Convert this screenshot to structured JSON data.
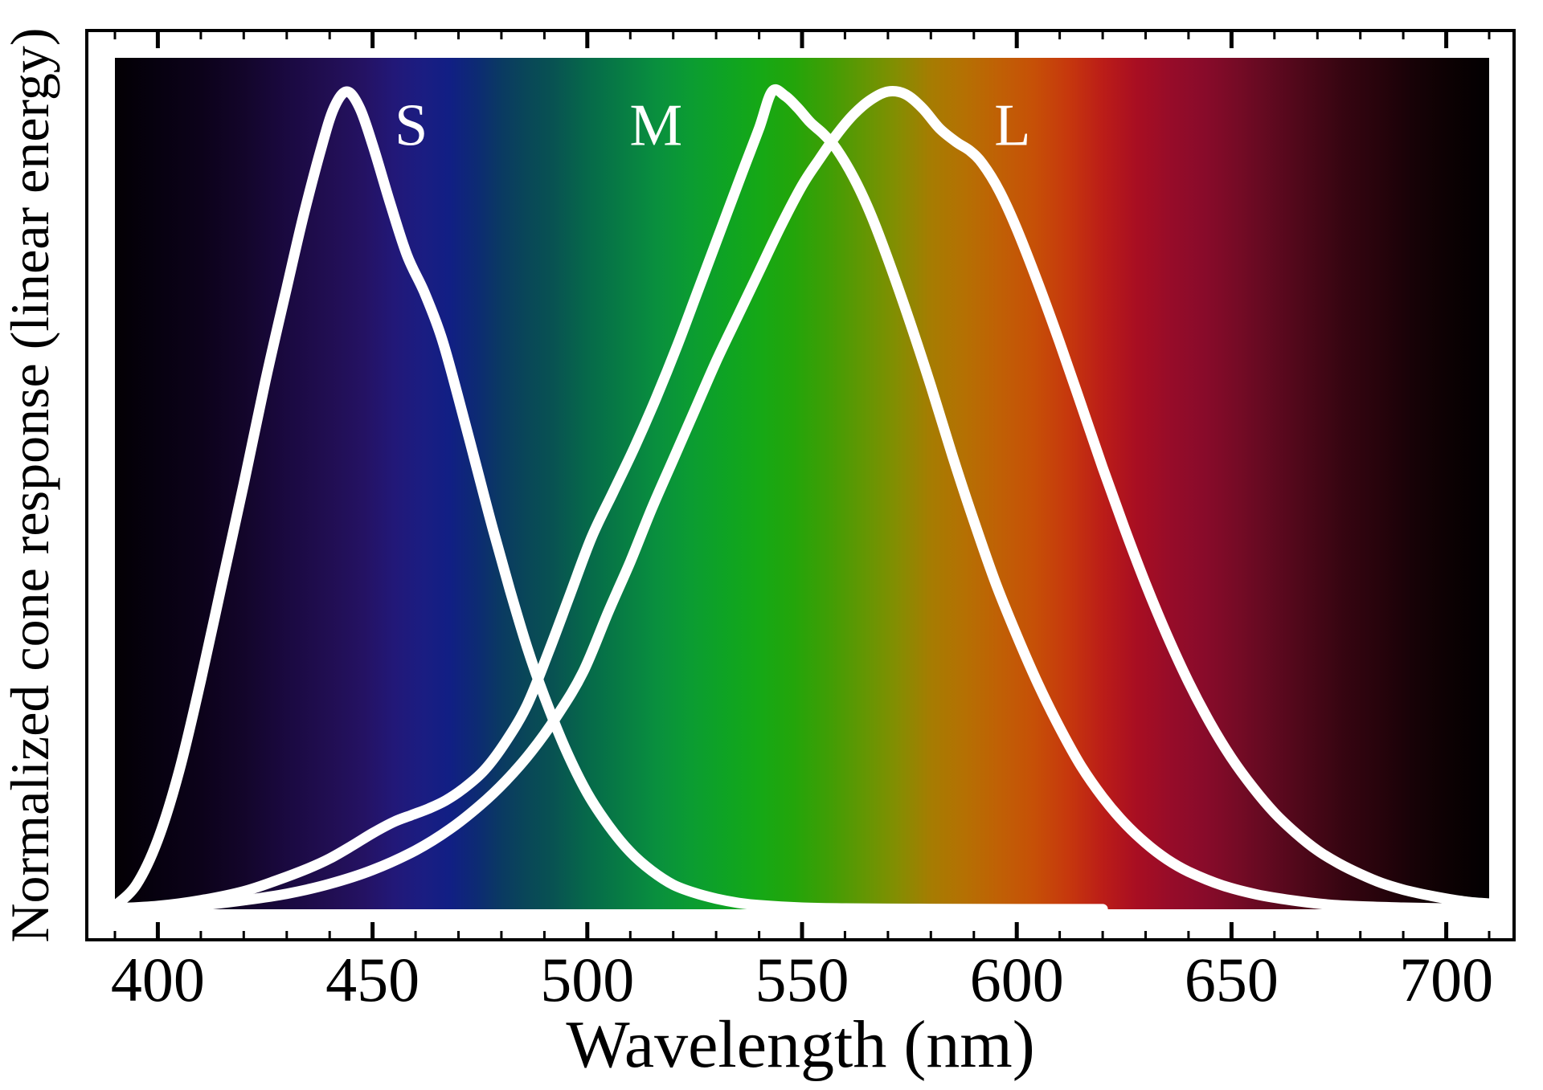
{
  "figure": {
    "background_color": "#ffffff",
    "frame_color": "#000000",
    "curve_color": "#ffffff",
    "text_color": "#000000",
    "curve_label_color": "#ffffff"
  },
  "chart_data": {
    "type": "line",
    "title": "",
    "xlabel": "Wavelength (nm)",
    "ylabel": "Normalized cone response (linear energy)",
    "grid": false,
    "legend_position": "inline-curve-labels",
    "x_axis": {
      "unit": "nm",
      "range": [
        390,
        710
      ],
      "major_ticks": [
        400,
        450,
        500,
        550,
        600,
        650,
        700
      ],
      "minor_tick_step": 10,
      "ticks_on": "top-and-bottom, pointing inward"
    },
    "y_axis": {
      "range": [
        0,
        1.04
      ],
      "ticks": "none"
    },
    "background_description": "visible light spectrum gradient, black at both ends",
    "spectrum_gradient_stops": [
      [
        390,
        "#030004"
      ],
      [
        400,
        "#070110"
      ],
      [
        410,
        "#0c021a"
      ],
      [
        420,
        "#13052a"
      ],
      [
        430,
        "#1a0940"
      ],
      [
        440,
        "#210e52"
      ],
      [
        448,
        "#241263"
      ],
      [
        455,
        "#221878"
      ],
      [
        462,
        "#1a1d82"
      ],
      [
        468,
        "#111f84"
      ],
      [
        474,
        "#0d2a74"
      ],
      [
        480,
        "#0a3a62"
      ],
      [
        486,
        "#094758"
      ],
      [
        492,
        "#085252"
      ],
      [
        500,
        "#06694a"
      ],
      [
        508,
        "#077c44"
      ],
      [
        516,
        "#098f3e"
      ],
      [
        524,
        "#0b9c32"
      ],
      [
        532,
        "#0ea324"
      ],
      [
        540,
        "#15a816"
      ],
      [
        548,
        "#23a50a"
      ],
      [
        556,
        "#3f9e05"
      ],
      [
        564,
        "#619703"
      ],
      [
        572,
        "#838e02"
      ],
      [
        580,
        "#a67c02"
      ],
      [
        588,
        "#b57003"
      ],
      [
        596,
        "#c06005"
      ],
      [
        604,
        "#c65007"
      ],
      [
        612,
        "#c6380d"
      ],
      [
        620,
        "#bb1d18"
      ],
      [
        628,
        "#a80e22"
      ],
      [
        636,
        "#960c29"
      ],
      [
        644,
        "#880b2a"
      ],
      [
        652,
        "#740b25"
      ],
      [
        660,
        "#5e091f"
      ],
      [
        668,
        "#4a0718"
      ],
      [
        676,
        "#360511"
      ],
      [
        684,
        "#28030c"
      ],
      [
        692,
        "#180207"
      ],
      [
        700,
        "#0d0103"
      ],
      [
        710,
        "#020001"
      ]
    ],
    "series": [
      {
        "name": "S",
        "peak_nm": 443,
        "label_at": [
          459,
          0.96
        ],
        "points": [
          [
            390,
            0.004
          ],
          [
            395,
            0.03
          ],
          [
            400,
            0.085
          ],
          [
            405,
            0.17
          ],
          [
            410,
            0.28
          ],
          [
            415,
            0.4
          ],
          [
            420,
            0.52
          ],
          [
            425,
            0.645
          ],
          [
            430,
            0.76
          ],
          [
            434,
            0.85
          ],
          [
            438,
            0.93
          ],
          [
            441,
            0.98
          ],
          [
            444,
            1.0
          ],
          [
            447,
            0.98
          ],
          [
            450,
            0.935
          ],
          [
            454,
            0.865
          ],
          [
            458,
            0.8
          ],
          [
            462,
            0.755
          ],
          [
            466,
            0.7
          ],
          [
            470,
            0.625
          ],
          [
            474,
            0.545
          ],
          [
            478,
            0.465
          ],
          [
            482,
            0.39
          ],
          [
            486,
            0.32
          ],
          [
            490,
            0.26
          ],
          [
            495,
            0.195
          ],
          [
            500,
            0.142
          ],
          [
            505,
            0.102
          ],
          [
            510,
            0.07
          ],
          [
            515,
            0.047
          ],
          [
            520,
            0.03
          ],
          [
            525,
            0.02
          ],
          [
            530,
            0.013
          ],
          [
            535,
            0.008
          ],
          [
            540,
            0.005
          ],
          [
            550,
            0.002
          ],
          [
            560,
            0.001
          ],
          [
            575,
            0.0005
          ],
          [
            590,
            0.0002
          ],
          [
            620,
            0.0001
          ]
        ]
      },
      {
        "name": "M",
        "peak_nm": 543,
        "label_at": [
          516,
          0.96
        ],
        "points": [
          [
            390,
            0.001
          ],
          [
            400,
            0.004
          ],
          [
            410,
            0.011
          ],
          [
            420,
            0.022
          ],
          [
            428,
            0.036
          ],
          [
            435,
            0.05
          ],
          [
            440,
            0.062
          ],
          [
            445,
            0.077
          ],
          [
            450,
            0.093
          ],
          [
            455,
            0.107
          ],
          [
            459,
            0.115
          ],
          [
            463,
            0.123
          ],
          [
            467,
            0.133
          ],
          [
            471,
            0.147
          ],
          [
            476,
            0.17
          ],
          [
            481,
            0.205
          ],
          [
            486,
            0.25
          ],
          [
            491,
            0.315
          ],
          [
            496,
            0.385
          ],
          [
            501,
            0.455
          ],
          [
            506,
            0.51
          ],
          [
            511,
            0.565
          ],
          [
            516,
            0.625
          ],
          [
            521,
            0.69
          ],
          [
            526,
            0.76
          ],
          [
            531,
            0.83
          ],
          [
            536,
            0.9
          ],
          [
            540,
            0.955
          ],
          [
            543,
            1.0
          ],
          [
            546,
            0.995
          ],
          [
            549,
            0.98
          ],
          [
            552,
            0.962
          ],
          [
            555,
            0.948
          ],
          [
            558,
            0.93
          ],
          [
            562,
            0.895
          ],
          [
            566,
            0.85
          ],
          [
            570,
            0.795
          ],
          [
            575,
            0.72
          ],
          [
            580,
            0.64
          ],
          [
            585,
            0.555
          ],
          [
            590,
            0.475
          ],
          [
            595,
            0.4
          ],
          [
            600,
            0.335
          ],
          [
            605,
            0.275
          ],
          [
            610,
            0.222
          ],
          [
            615,
            0.175
          ],
          [
            620,
            0.137
          ],
          [
            625,
            0.106
          ],
          [
            630,
            0.081
          ],
          [
            635,
            0.061
          ],
          [
            640,
            0.046
          ],
          [
            648,
            0.029
          ],
          [
            656,
            0.018
          ],
          [
            664,
            0.011
          ],
          [
            672,
            0.006
          ],
          [
            680,
            0.0035
          ],
          [
            690,
            0.002
          ],
          [
            700,
            0.001
          ],
          [
            710,
            0.0005
          ]
        ]
      },
      {
        "name": "L",
        "peak_nm": 570,
        "label_at": [
          599,
          0.96
        ],
        "points": [
          [
            390,
            0.0008
          ],
          [
            400,
            0.002
          ],
          [
            410,
            0.005
          ],
          [
            420,
            0.011
          ],
          [
            430,
            0.019
          ],
          [
            440,
            0.031
          ],
          [
            450,
            0.048
          ],
          [
            460,
            0.072
          ],
          [
            468,
            0.098
          ],
          [
            475,
            0.127
          ],
          [
            481,
            0.157
          ],
          [
            487,
            0.193
          ],
          [
            493,
            0.237
          ],
          [
            499,
            0.29
          ],
          [
            505,
            0.365
          ],
          [
            510,
            0.425
          ],
          [
            515,
            0.49
          ],
          [
            520,
            0.55
          ],
          [
            525,
            0.61
          ],
          [
            530,
            0.67
          ],
          [
            535,
            0.725
          ],
          [
            540,
            0.78
          ],
          [
            545,
            0.835
          ],
          [
            550,
            0.885
          ],
          [
            554,
            0.917
          ],
          [
            558,
            0.947
          ],
          [
            562,
            0.972
          ],
          [
            566,
            0.99
          ],
          [
            570,
            1.0
          ],
          [
            574,
            0.997
          ],
          [
            578,
            0.98
          ],
          [
            582,
            0.955
          ],
          [
            586,
            0.938
          ],
          [
            589,
            0.928
          ],
          [
            592,
            0.912
          ],
          [
            596,
            0.878
          ],
          [
            600,
            0.832
          ],
          [
            605,
            0.765
          ],
          [
            610,
            0.693
          ],
          [
            615,
            0.617
          ],
          [
            620,
            0.54
          ],
          [
            625,
            0.467
          ],
          [
            630,
            0.398
          ],
          [
            635,
            0.335
          ],
          [
            640,
            0.278
          ],
          [
            645,
            0.228
          ],
          [
            650,
            0.185
          ],
          [
            655,
            0.149
          ],
          [
            660,
            0.118
          ],
          [
            665,
            0.093
          ],
          [
            670,
            0.072
          ],
          [
            675,
            0.056
          ],
          [
            680,
            0.043
          ],
          [
            685,
            0.032
          ],
          [
            690,
            0.024
          ],
          [
            695,
            0.018
          ],
          [
            700,
            0.013
          ],
          [
            705,
            0.009
          ],
          [
            710,
            0.007
          ]
        ]
      }
    ]
  }
}
